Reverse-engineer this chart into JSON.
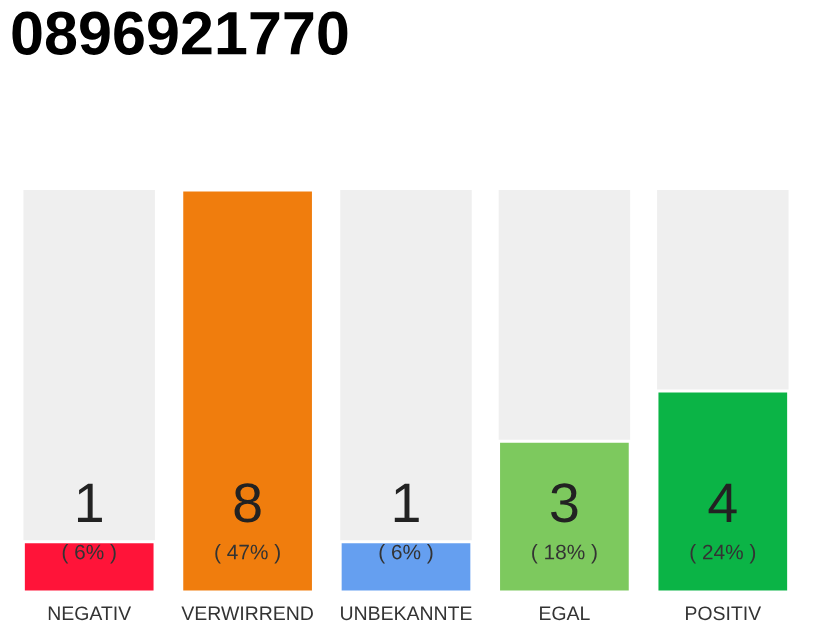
{
  "chart_data": {
    "type": "bar",
    "title": "0896921770",
    "categories": [
      "NEGATIV",
      "VERWIRREND",
      "UNBEKANNTE",
      "EGAL",
      "POSITIV"
    ],
    "values": [
      1,
      8,
      1,
      3,
      4
    ],
    "colors": [
      "#ff1439",
      "#f07d0d",
      "#659ff0",
      "#7dc95e",
      "#0bb446"
    ],
    "data_labels": true,
    "annotations": [
      "( 6% )",
      "( 47% )",
      "( 6% )",
      "( 18% )",
      "( 24% )"
    ]
  }
}
